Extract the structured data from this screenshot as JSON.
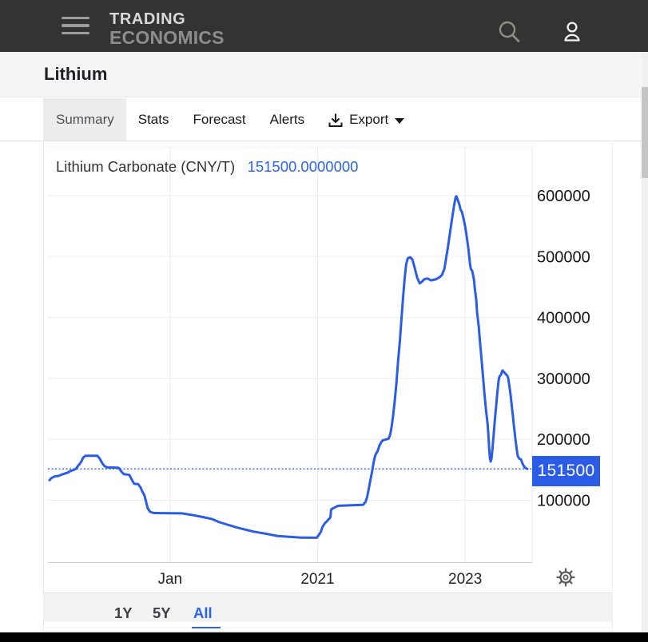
{
  "header": {
    "logo_line1": "TRADING",
    "logo_line2": "ECONOMICS"
  },
  "page": {
    "title": "Lithium"
  },
  "tabs": [
    {
      "label": "Summary",
      "active": true
    },
    {
      "label": "Stats",
      "active": false
    },
    {
      "label": "Forecast",
      "active": false
    },
    {
      "label": "Alerts",
      "active": false
    },
    {
      "label": "Export",
      "active": false,
      "icon": "download-icon",
      "caret": true
    }
  ],
  "chart": {
    "title": "Lithium Carbonate (CNY/T)",
    "value_label": "151500.0000000",
    "badge": "151500"
  },
  "range_selector": {
    "buttons": [
      {
        "label": "1Y",
        "active": false
      },
      {
        "label": "5Y",
        "active": false
      },
      {
        "label": "All",
        "active": true
      }
    ]
  },
  "icons": [
    "hamburger-icon",
    "search-icon",
    "user-icon",
    "download-icon",
    "caret-down-icon",
    "gear-icon"
  ],
  "colors": {
    "accent_blue": "#2b5ce8",
    "value_text_blue": "#2a65e8",
    "header_bg": "#333333",
    "title_band_bg": "#f5f5f6",
    "active_tab_bg": "#ededed",
    "grid": "#ededed",
    "axis_line": "#cfcfcf",
    "label_dark": "#1a1a1a"
  },
  "chart_data": {
    "type": "line",
    "title": "Lithium Carbonate (CNY/T)",
    "unit": "CNY/T",
    "current_value": 151500,
    "reference_line": 151500,
    "x_range": [
      2017.367,
      2023.886
    ],
    "x_ticks": [
      {
        "label": "Jan",
        "t": 2019.0
      },
      {
        "label": "2021",
        "t": 2021.0
      },
      {
        "label": "2023",
        "t": 2023.0
      }
    ],
    "y_ticks": [
      600000,
      500000,
      400000,
      300000,
      200000,
      100000
    ],
    "grid": true,
    "legend": "none",
    "series": [
      {
        "name": "Lithium Carbonate",
        "color": "#2b5ce8",
        "points": [
          [
            2017.367,
            133000
          ],
          [
            2017.389,
            136000
          ],
          [
            2017.432,
            139000
          ],
          [
            2017.486,
            140000
          ],
          [
            2017.54,
            142500
          ],
          [
            2017.616,
            145500
          ],
          [
            2017.649,
            148000
          ],
          [
            2017.692,
            149500
          ],
          [
            2017.724,
            151500
          ],
          [
            2017.757,
            157000
          ],
          [
            2017.778,
            160000
          ],
          [
            2017.8,
            164000
          ],
          [
            2017.822,
            170000
          ],
          [
            2017.854,
            173000
          ],
          [
            2018.016,
            173000
          ],
          [
            2018.049,
            168000
          ],
          [
            2018.081,
            161000
          ],
          [
            2018.113,
            156000
          ],
          [
            2018.146,
            154000
          ],
          [
            2018.297,
            153500
          ],
          [
            2018.319,
            151500
          ],
          [
            2018.341,
            147000
          ],
          [
            2018.373,
            143000
          ],
          [
            2018.449,
            141500
          ],
          [
            2018.481,
            134000
          ],
          [
            2018.514,
            127000
          ],
          [
            2018.568,
            126500
          ],
          [
            2018.6,
            121000
          ],
          [
            2018.622,
            115000
          ],
          [
            2018.654,
            108000
          ],
          [
            2018.676,
            97000
          ],
          [
            2018.697,
            87000
          ],
          [
            2018.73,
            81000
          ],
          [
            2018.784,
            79000
          ],
          [
            2019.162,
            78500
          ],
          [
            2019.292,
            76000
          ],
          [
            2019.422,
            73000
          ],
          [
            2019.562,
            69500
          ],
          [
            2019.67,
            64000
          ],
          [
            2019.778,
            60000
          ],
          [
            2019.886,
            56000
          ],
          [
            2019.995,
            52500
          ],
          [
            2020.135,
            48500
          ],
          [
            2020.286,
            45300
          ],
          [
            2020.449,
            41500
          ],
          [
            2020.611,
            40000
          ],
          [
            2020.773,
            38800
          ],
          [
            2020.989,
            38500
          ],
          [
            2021.022,
            44000
          ],
          [
            2021.043,
            48000
          ],
          [
            2021.065,
            56000
          ],
          [
            2021.097,
            62000
          ],
          [
            2021.13,
            66000
          ],
          [
            2021.162,
            70500
          ],
          [
            2021.173,
            72000
          ],
          [
            2021.184,
            85000
          ],
          [
            2021.227,
            88000
          ],
          [
            2021.281,
            91000
          ],
          [
            2021.616,
            92500
          ],
          [
            2021.649,
            97000
          ],
          [
            2021.67,
            105000
          ],
          [
            2021.692,
            118000
          ],
          [
            2021.714,
            132000
          ],
          [
            2021.735,
            145000
          ],
          [
            2021.746,
            152500
          ],
          [
            2021.757,
            161000
          ],
          [
            2021.778,
            172000
          ],
          [
            2021.789,
            176000
          ],
          [
            2021.811,
            180000
          ],
          [
            2021.822,
            184000
          ],
          [
            2021.843,
            191000
          ],
          [
            2021.865,
            196000
          ],
          [
            2021.886,
            198500
          ],
          [
            2021.962,
            201000
          ],
          [
            2021.984,
            208000
          ],
          [
            2022.005,
            222000
          ],
          [
            2022.027,
            242000
          ],
          [
            2022.049,
            268000
          ],
          [
            2022.07,
            295000
          ],
          [
            2022.092,
            330000
          ],
          [
            2022.114,
            360000
          ],
          [
            2022.135,
            395000
          ],
          [
            2022.157,
            430000
          ],
          [
            2022.178,
            462000
          ],
          [
            2022.2,
            487000
          ],
          [
            2022.222,
            497000
          ],
          [
            2022.254,
            499000
          ],
          [
            2022.286,
            495000
          ],
          [
            2022.319,
            480000
          ],
          [
            2022.351,
            465000
          ],
          [
            2022.384,
            456000
          ],
          [
            2022.416,
            459000
          ],
          [
            2022.449,
            463000
          ],
          [
            2022.492,
            464000
          ],
          [
            2022.535,
            461000
          ],
          [
            2022.6,
            462500
          ],
          [
            2022.654,
            466000
          ],
          [
            2022.686,
            470000
          ],
          [
            2022.719,
            480000
          ],
          [
            2022.741,
            497000
          ],
          [
            2022.762,
            512000
          ],
          [
            2022.784,
            530000
          ],
          [
            2022.805,
            548000
          ],
          [
            2022.827,
            566000
          ],
          [
            2022.849,
            583000
          ],
          [
            2022.87,
            597000
          ],
          [
            2022.881,
            599000
          ],
          [
            2022.903,
            592000
          ],
          [
            2022.924,
            584000
          ],
          [
            2022.935,
            578000
          ],
          [
            2022.957,
            573000
          ],
          [
            2022.978,
            562000
          ],
          [
            2023.0,
            549000
          ],
          [
            2023.022,
            532000
          ],
          [
            2023.043,
            513000
          ],
          [
            2023.065,
            488000
          ],
          [
            2023.076,
            480000
          ],
          [
            2023.097,
            476000
          ],
          [
            2023.119,
            462000
          ],
          [
            2023.13,
            448000
          ],
          [
            2023.151,
            428000
          ],
          [
            2023.162,
            408000
          ],
          [
            2023.184,
            385000
          ],
          [
            2023.195,
            368000
          ],
          [
            2023.216,
            340000
          ],
          [
            2023.238,
            308000
          ],
          [
            2023.259,
            278000
          ],
          [
            2023.281,
            250000
          ],
          [
            2023.303,
            226000
          ],
          [
            2023.314,
            208000
          ],
          [
            2023.324,
            188000
          ],
          [
            2023.335,
            170000
          ],
          [
            2023.346,
            163500
          ],
          [
            2023.357,
            168000
          ],
          [
            2023.368,
            182000
          ],
          [
            2023.378,
            196000
          ],
          [
            2023.389,
            212000
          ],
          [
            2023.4,
            228000
          ],
          [
            2023.411,
            243000
          ],
          [
            2023.422,
            258000
          ],
          [
            2023.432,
            272000
          ],
          [
            2023.443,
            285000
          ],
          [
            2023.454,
            297000
          ],
          [
            2023.465,
            303000
          ],
          [
            2023.486,
            306000
          ],
          [
            2023.497,
            311000
          ],
          [
            2023.508,
            313000
          ],
          [
            2023.53,
            310000
          ],
          [
            2023.551,
            307000
          ],
          [
            2023.573,
            304000
          ],
          [
            2023.584,
            300000
          ],
          [
            2023.595,
            291000
          ],
          [
            2023.605,
            282000
          ],
          [
            2023.616,
            272000
          ],
          [
            2023.627,
            260000
          ],
          [
            2023.638,
            248000
          ],
          [
            2023.649,
            236000
          ],
          [
            2023.659,
            224000
          ],
          [
            2023.67,
            212000
          ],
          [
            2023.681,
            200000
          ],
          [
            2023.692,
            190000
          ],
          [
            2023.703,
            180000
          ],
          [
            2023.714,
            172000
          ],
          [
            2023.735,
            168000
          ],
          [
            2023.757,
            167000
          ],
          [
            2023.778,
            160000
          ],
          [
            2023.8,
            155000
          ],
          [
            2023.822,
            152600
          ],
          [
            2023.843,
            151500
          ]
        ]
      }
    ]
  }
}
